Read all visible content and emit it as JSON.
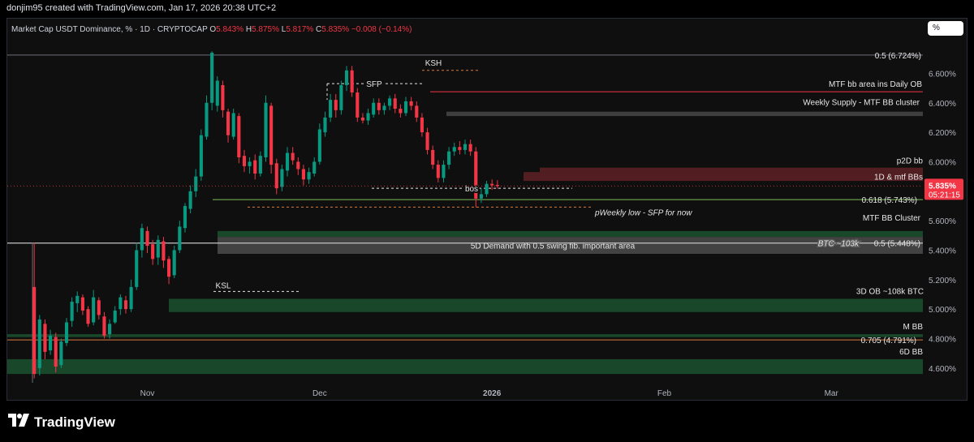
{
  "header": {
    "credit": "donjim95 created with TradingView.com, Jan 17, 2026 20:38 UTC+2",
    "symbol": "Market Cap USDT Dominance, % · 1D · CRYPTOCAP",
    "o_label": "O",
    "o_value": "5.843%",
    "h_label": "H",
    "h_value": "5.875%",
    "l_label": "L",
    "l_value": "5.817%",
    "c_label": "C",
    "c_value": "5.835%",
    "change": "−0.008 (−0.14%)",
    "scale_button": "%"
  },
  "footer": {
    "logo_text": "TradingView"
  },
  "colors": {
    "up": "#089981",
    "down": "#f23645",
    "zone_green": "#1e5b33",
    "zone_gray": "#5d5d5d",
    "zone_red": "#8c2b33",
    "fib": "#7fbf5a",
    "orange": "#d97b3a",
    "price_badge": "#f23645"
  },
  "chart_data": {
    "type": "candlestick",
    "title": "Market Cap USDT Dominance, % · 1D · CRYPTOCAP",
    "y_axis": {
      "ylim": [
        4.5,
        6.85
      ],
      "ticks": [
        "6.600%",
        "6.400%",
        "6.200%",
        "6.000%",
        "5.800%",
        "5.600%",
        "5.400%",
        "5.200%",
        "5.000%",
        "4.800%",
        "4.600%"
      ],
      "tick_values": [
        6.6,
        6.4,
        6.2,
        6.0,
        5.8,
        5.6,
        5.4,
        5.2,
        5.0,
        4.8,
        4.6
      ]
    },
    "x_axis": {
      "labels": [
        "Nov",
        "Dec",
        "2026",
        "Feb",
        "Mar"
      ],
      "label_day_index": [
        21,
        53,
        85,
        117,
        148
      ],
      "day_range": [
        -5,
        165
      ]
    },
    "last_price": {
      "value": 5.835,
      "label": "5.835%",
      "countdown": "05:21:15"
    },
    "candles_open_close_high_low": [
      [
        5.15,
        4.56,
        5.45,
        4.53
      ],
      [
        4.6,
        4.93,
        4.96,
        4.55
      ],
      [
        4.9,
        4.71,
        4.93,
        4.66
      ],
      [
        4.72,
        4.82,
        4.86,
        4.69
      ],
      [
        4.81,
        4.61,
        4.84,
        4.57
      ],
      [
        4.62,
        4.78,
        4.8,
        4.6
      ],
      [
        4.77,
        4.91,
        4.94,
        4.75
      ],
      [
        4.92,
        5.05,
        5.08,
        4.88
      ],
      [
        5.04,
        5.09,
        5.12,
        4.98
      ],
      [
        5.08,
        4.99,
        5.1,
        4.96
      ],
      [
        5.0,
        4.9,
        5.02,
        4.88
      ],
      [
        4.91,
        5.08,
        5.13,
        4.89
      ],
      [
        5.06,
        4.96,
        5.08,
        4.93
      ],
      [
        4.95,
        4.82,
        4.98,
        4.8
      ],
      [
        4.83,
        4.9,
        4.93,
        4.8
      ],
      [
        4.91,
        4.99,
        5.02,
        4.9
      ],
      [
        5.0,
        5.08,
        5.1,
        4.96
      ],
      [
        5.06,
        5.0,
        5.09,
        4.97
      ],
      [
        5.0,
        5.15,
        5.2,
        4.98
      ],
      [
        5.15,
        5.4,
        5.45,
        5.13
      ],
      [
        5.4,
        5.55,
        5.58,
        5.35
      ],
      [
        5.53,
        5.43,
        5.56,
        5.38
      ],
      [
        5.44,
        5.34,
        5.47,
        5.3
      ],
      [
        5.35,
        5.47,
        5.5,
        5.3
      ],
      [
        5.46,
        5.33,
        5.49,
        5.28
      ],
      [
        5.34,
        5.22,
        5.36,
        5.17
      ],
      [
        5.23,
        5.4,
        5.43,
        5.21
      ],
      [
        5.4,
        5.56,
        5.6,
        5.38
      ],
      [
        5.55,
        5.7,
        5.72,
        5.52
      ],
      [
        5.68,
        5.8,
        5.84,
        5.65
      ],
      [
        5.8,
        5.9,
        5.95,
        5.76
      ],
      [
        5.9,
        6.18,
        6.22,
        5.87
      ],
      [
        6.17,
        6.4,
        6.45,
        6.15
      ],
      [
        6.4,
        6.74,
        6.75,
        6.35
      ],
      [
        6.38,
        6.55,
        6.58,
        6.34
      ],
      [
        6.52,
        6.35,
        6.55,
        6.3
      ],
      [
        6.34,
        6.18,
        6.36,
        6.13
      ],
      [
        6.17,
        6.33,
        6.36,
        6.15
      ],
      [
        6.31,
        6.03,
        6.33,
        5.99
      ],
      [
        6.04,
        5.97,
        6.08,
        5.93
      ],
      [
        5.97,
        6.0,
        6.03,
        5.92
      ],
      [
        6.01,
        5.92,
        6.05,
        5.88
      ],
      [
        5.92,
        6.04,
        6.07,
        5.9
      ],
      [
        6.03,
        6.4,
        6.45,
        6.0
      ],
      [
        6.38,
        5.98,
        6.4,
        5.92
      ],
      [
        5.99,
        5.82,
        6.02,
        5.78
      ],
      [
        5.83,
        5.95,
        5.98,
        5.8
      ],
      [
        5.94,
        6.06,
        6.1,
        5.9
      ],
      [
        6.06,
        6.01,
        6.1,
        5.98
      ],
      [
        6.0,
        5.95,
        6.03,
        5.91
      ],
      [
        5.95,
        5.88,
        5.98,
        5.84
      ],
      [
        5.88,
        5.93,
        5.96,
        5.85
      ],
      [
        5.92,
        6.0,
        6.03,
        5.9
      ],
      [
        6.0,
        6.22,
        6.26,
        5.98
      ],
      [
        6.2,
        6.3,
        6.34,
        6.17
      ],
      [
        6.3,
        6.42,
        6.46,
        6.27
      ],
      [
        6.42,
        6.35,
        6.46,
        6.3
      ],
      [
        6.35,
        6.52,
        6.55,
        6.32
      ],
      [
        6.52,
        6.62,
        6.65,
        6.48
      ],
      [
        6.62,
        6.47,
        6.65,
        6.44
      ],
      [
        6.47,
        6.3,
        6.5,
        6.27
      ],
      [
        6.3,
        6.28,
        6.33,
        6.26
      ],
      [
        6.28,
        6.33,
        6.36,
        6.25
      ],
      [
        6.32,
        6.4,
        6.43,
        6.3
      ],
      [
        6.4,
        6.35,
        6.43,
        6.32
      ],
      [
        6.35,
        6.38,
        6.4,
        6.32
      ],
      [
        6.38,
        6.43,
        6.45,
        6.35
      ],
      [
        6.43,
        6.36,
        6.46,
        6.33
      ],
      [
        6.36,
        6.33,
        6.39,
        6.3
      ],
      [
        6.33,
        6.41,
        6.44,
        6.31
      ],
      [
        6.41,
        6.38,
        6.44,
        6.35
      ],
      [
        6.38,
        6.3,
        6.41,
        6.27
      ],
      [
        6.3,
        6.2,
        6.33,
        6.17
      ],
      [
        6.2,
        6.08,
        6.23,
        6.05
      ],
      [
        6.08,
        5.98,
        6.11,
        5.95
      ],
      [
        5.98,
        5.89,
        6.01,
        5.86
      ],
      [
        5.89,
        5.98,
        6.01,
        5.86
      ],
      [
        5.98,
        6.07,
        6.1,
        5.95
      ],
      [
        6.07,
        6.1,
        6.13,
        6.04
      ],
      [
        6.1,
        6.08,
        6.14,
        6.05
      ],
      [
        6.08,
        6.12,
        6.15,
        6.05
      ],
      [
        6.12,
        6.07,
        6.15,
        6.04
      ],
      [
        6.07,
        5.75,
        6.1,
        5.69
      ],
      [
        5.75,
        5.78,
        5.82,
        5.72
      ],
      [
        5.78,
        5.85,
        5.87,
        5.76
      ],
      [
        5.85,
        5.84,
        5.88,
        5.81
      ],
      [
        5.843,
        5.835,
        5.875,
        5.817
      ]
    ],
    "annotations": [
      {
        "label": "0.5 (6.724%)",
        "kind": "fib_level",
        "value": 6.724
      },
      {
        "label": "KSH",
        "kind": "swing_high",
        "value": 6.62
      },
      {
        "label": "SFP",
        "kind": "swing_failure",
        "value": 6.53
      },
      {
        "label": "MTF bb area ins Daily OB",
        "kind": "level",
        "value": 6.475
      },
      {
        "label": "Weekly Supply - MTF BB cluster",
        "kind": "zone",
        "from": 6.31,
        "to": 6.34
      },
      {
        "label": "p2D bb",
        "kind": "zone",
        "from": 5.93,
        "to": 5.96
      },
      {
        "label": "1D & mtf BBs",
        "kind": "zone",
        "from": 5.87,
        "to": 5.93
      },
      {
        "label": "bos",
        "kind": "break_of_structure",
        "value": 5.82
      },
      {
        "label": "0.618 (5.743%)",
        "kind": "fib_level",
        "value": 5.743
      },
      {
        "label": "pWeekly low - SFP for now",
        "kind": "level",
        "value": 5.692
      },
      {
        "label": "MTF BB Cluster",
        "kind": "zone",
        "from": 5.49,
        "to": 5.53
      },
      {
        "label": "BTC ~103k",
        "kind": "level",
        "value": 5.448
      },
      {
        "label": "0.5 (5.448%)",
        "kind": "fib_level",
        "value": 5.448
      },
      {
        "label": "5D Demand with 0.5 swing fib. important area",
        "kind": "zone",
        "from": 5.375,
        "to": 5.49
      },
      {
        "label": "KSL",
        "kind": "swing_low",
        "value": 5.12
      },
      {
        "label": "3D OB ~108k BTC",
        "kind": "zone",
        "from": 4.98,
        "to": 5.07
      },
      {
        "label": "M BB",
        "kind": "zone",
        "from": 4.81,
        "to": 4.83
      },
      {
        "label": "0.705 (4.791%)",
        "kind": "fib_level",
        "value": 4.791
      },
      {
        "label": "6D BB",
        "kind": "zone",
        "from": 4.56,
        "to": 4.66
      }
    ]
  }
}
